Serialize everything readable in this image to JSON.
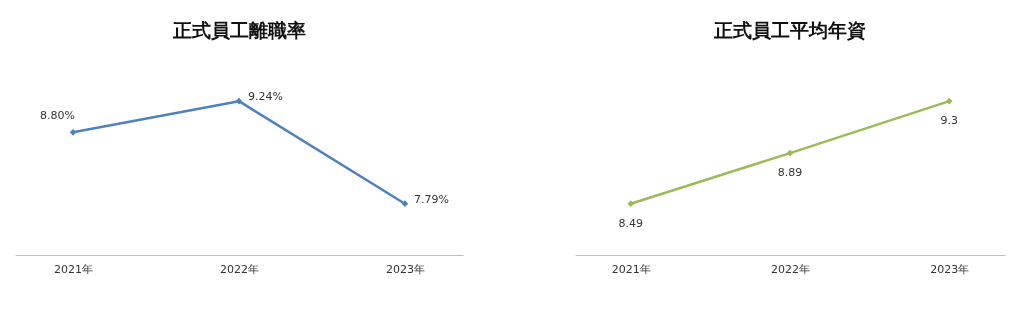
{
  "chart_data": [
    {
      "type": "line",
      "title": "正式員工離職率",
      "categories": [
        "2021年",
        "2022年",
        "2023年"
      ],
      "values": [
        8.8,
        9.24,
        7.79
      ],
      "value_labels": [
        "8.80%",
        "9.24%",
        "7.79%"
      ],
      "color": "#4f81bd",
      "marker": "diamond"
    },
    {
      "type": "line",
      "title": "正式員工平均年資",
      "categories": [
        "2021年",
        "2022年",
        "2023年"
      ],
      "values": [
        8.49,
        8.89,
        9.3
      ],
      "value_labels": [
        "8.49",
        "8.89",
        "9.3"
      ],
      "color": "#9bbb59",
      "marker": "diamond"
    }
  ]
}
